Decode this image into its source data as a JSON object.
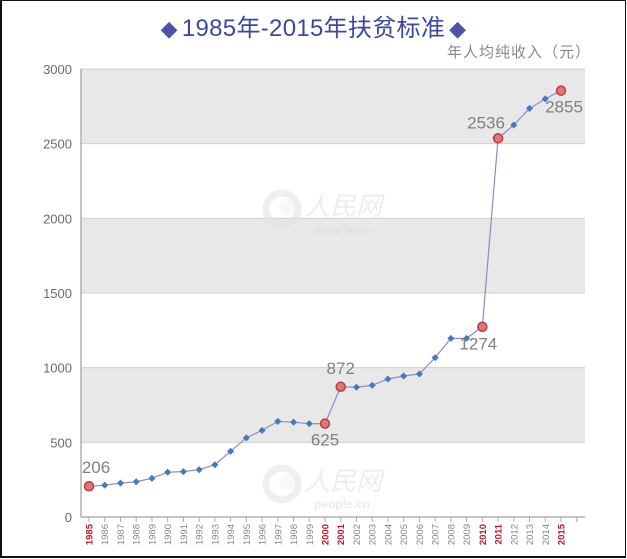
{
  "title": {
    "left_icon": "diamond-icon",
    "text": "1985年-2015年扶贫标准",
    "right_icon": "diamond-icon",
    "color": "#3d4a9a"
  },
  "unit_label": "年人均纯收入（元）",
  "watermark": {
    "brand": "人民网",
    "domain": "people.cn"
  },
  "colors": {
    "line": "#8a8ad0",
    "point": "#4a78b8",
    "highlight_point_fill": "#d87a7a",
    "highlight_point_stroke": "#c0393b",
    "band_gray": "#e8e8e8",
    "highlight_year": "#c0142a",
    "normal_year": "#888888"
  },
  "chart_data": {
    "type": "line",
    "title": "1985年-2015年扶贫标准",
    "xlabel": "",
    "ylabel": "年人均纯收入（元）",
    "ylim": [
      0,
      3000
    ],
    "yticks": [
      0,
      500,
      1000,
      1500,
      2000,
      2500,
      3000
    ],
    "grid": true,
    "legend": null,
    "x": [
      1985,
      1986,
      1987,
      1988,
      1989,
      1990,
      1991,
      1992,
      1993,
      1994,
      1995,
      1996,
      1997,
      1998,
      1999,
      2000,
      2001,
      2002,
      2003,
      2004,
      2005,
      2006,
      2007,
      2008,
      2009,
      2010,
      2011,
      2012,
      2013,
      2014,
      2015
    ],
    "values": [
      206,
      213,
      227,
      236,
      259,
      300,
      304,
      317,
      350,
      440,
      530,
      580,
      640,
      635,
      625,
      625,
      872,
      869,
      882,
      924,
      944,
      958,
      1067,
      1196,
      1196,
      1274,
      2536,
      2625,
      2736,
      2800,
      2855
    ],
    "highlighted_years": [
      1985,
      2000,
      2001,
      2010,
      2011,
      2015
    ],
    "annotations": [
      {
        "year": 1985,
        "label": "206",
        "position": "above"
      },
      {
        "year": 2000,
        "label": "625",
        "position": "below"
      },
      {
        "year": 2001,
        "label": "872",
        "position": "above"
      },
      {
        "year": 2010,
        "label": "1274",
        "position": "below"
      },
      {
        "year": 2011,
        "label": "2536",
        "position": "above-left"
      },
      {
        "year": 2015,
        "label": "2855",
        "position": "below"
      }
    ]
  }
}
